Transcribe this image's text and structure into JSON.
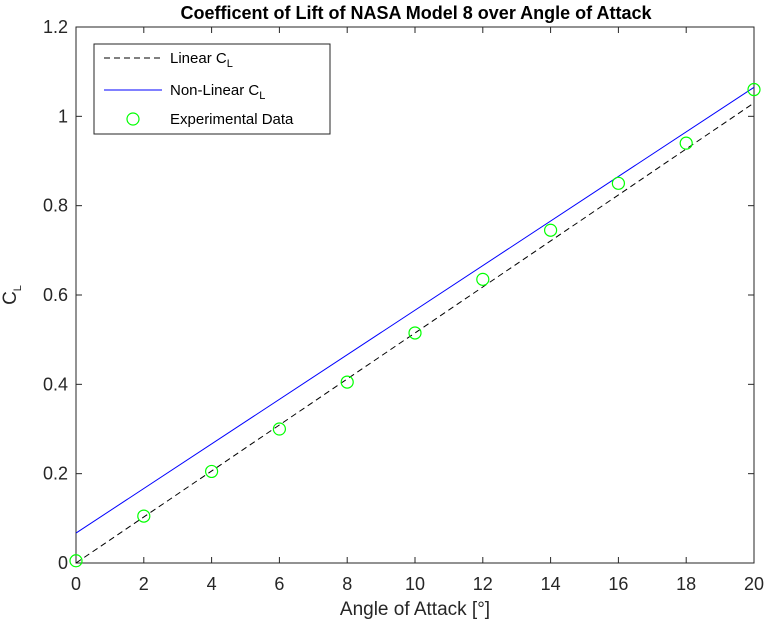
{
  "chart_data": {
    "type": "line",
    "title": "Coefficent of Lift of NASA Model 8 over Angle of Attack",
    "xlabel": "Angle of Attack [°]",
    "ylabel": {
      "main": "C",
      "sub": "L"
    },
    "xlim": [
      0,
      20
    ],
    "ylim": [
      0,
      1.2
    ],
    "xticks": [
      0,
      2,
      4,
      6,
      8,
      10,
      12,
      14,
      16,
      18,
      20
    ],
    "yticks": [
      0,
      0.2,
      0.4,
      0.6,
      0.8,
      1,
      1.2
    ],
    "grid": false,
    "legend_position": "top-left",
    "series": [
      {
        "name": "Linear C_L",
        "style": "dashed",
        "color": "#000000",
        "x": [
          0,
          20
        ],
        "y": [
          0,
          1.03
        ]
      },
      {
        "name": "Non-Linear C_L",
        "style": "solid",
        "color": "#0000ff",
        "x": [
          0,
          20
        ],
        "y": [
          0.067,
          1.065
        ]
      },
      {
        "name": "Experimental Data",
        "style": "markers",
        "marker": "circle",
        "color": "#00ff00",
        "x": [
          0,
          2,
          4,
          6,
          8,
          10,
          12,
          14,
          16,
          18,
          20
        ],
        "y": [
          0.005,
          0.105,
          0.205,
          0.3,
          0.405,
          0.515,
          0.635,
          0.745,
          0.85,
          0.94,
          1.06
        ]
      }
    ],
    "legend": {
      "linear": {
        "main": "Linear C",
        "sub": "L"
      },
      "nonlinear": {
        "main": "Non-Linear C",
        "sub": "L"
      },
      "experimental": {
        "main": "Experimental Data"
      }
    }
  }
}
